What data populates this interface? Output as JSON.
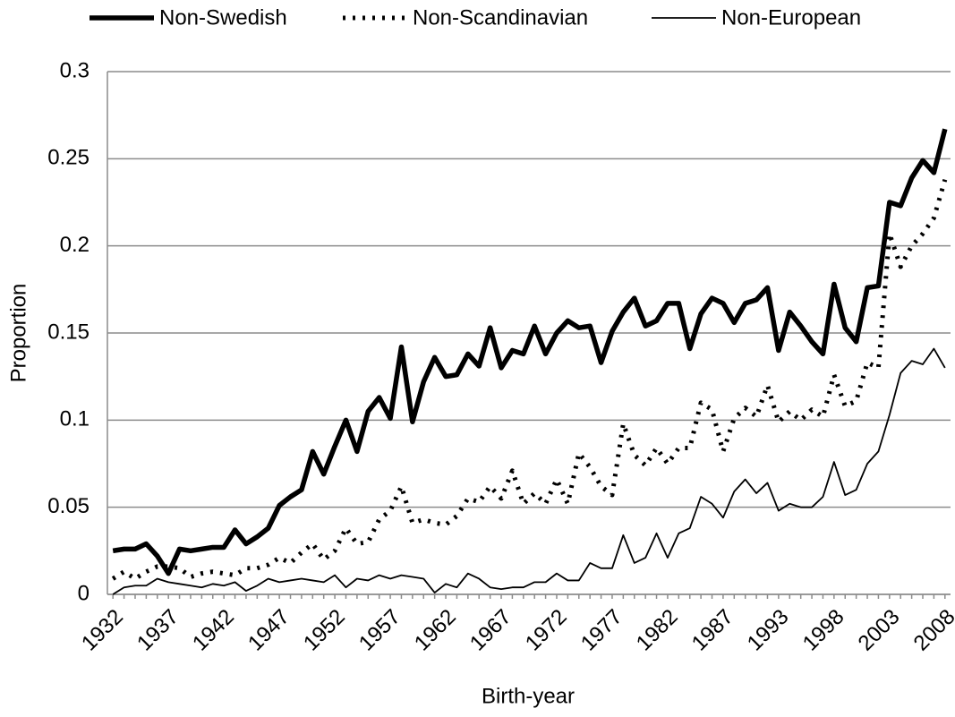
{
  "chart_data": {
    "type": "line",
    "x_label": "Birth-year",
    "y_label": "Proportion",
    "categories": [
      "1932",
      null,
      null,
      null,
      null,
      "1937",
      null,
      null,
      null,
      null,
      "1942",
      null,
      null,
      null,
      null,
      "1947",
      null,
      null,
      null,
      null,
      "1952",
      null,
      null,
      null,
      null,
      "1957",
      null,
      null,
      null,
      null,
      "1962",
      null,
      null,
      null,
      null,
      "1967",
      null,
      null,
      null,
      null,
      "1972",
      null,
      null,
      null,
      null,
      "1977",
      null,
      null,
      null,
      null,
      "1982",
      null,
      null,
      null,
      null,
      "1987",
      null,
      null,
      null,
      null,
      "1993",
      null,
      null,
      null,
      null,
      "1998",
      null,
      null,
      null,
      null,
      "2003",
      null,
      null,
      null,
      null,
      "2008"
    ],
    "ylim": [
      0,
      0.3
    ],
    "yticks": [
      0,
      0.05,
      0.1,
      0.15,
      0.2,
      0.25,
      0.3
    ],
    "grid": true,
    "legend": "top",
    "series": [
      {
        "name": "Non-Swedish",
        "color": "#000000",
        "line_style": "solid",
        "line_width": 5.5,
        "values": [
          0.025,
          0.026,
          0.026,
          0.029,
          0.022,
          0.012,
          0.026,
          0.025,
          0.026,
          0.027,
          0.027,
          0.037,
          0.029,
          0.033,
          0.038,
          0.051,
          0.056,
          0.06,
          0.082,
          0.069,
          0.085,
          0.1,
          0.082,
          0.105,
          0.113,
          0.101,
          0.142,
          0.099,
          0.122,
          0.136,
          0.125,
          0.126,
          0.138,
          0.131,
          0.153,
          0.13,
          0.14,
          0.138,
          0.154,
          0.138,
          0.15,
          0.157,
          0.153,
          0.154,
          0.133,
          0.151,
          0.162,
          0.17,
          0.154,
          0.157,
          0.167,
          0.167,
          0.141,
          0.161,
          0.17,
          0.167,
          0.156,
          0.167,
          0.169,
          0.176,
          0.14,
          0.162,
          0.154,
          0.145,
          0.138,
          0.178,
          0.153,
          0.145,
          0.176,
          0.177,
          0.225,
          0.223,
          0.239,
          0.249,
          0.242,
          0.267
        ]
      },
      {
        "name": "Non-Scandinavian",
        "color": "#000000",
        "line_style": "dotted",
        "line_width": 5,
        "values": [
          0.009,
          0.013,
          0.009,
          0.013,
          0.016,
          0.016,
          0.015,
          0.01,
          0.012,
          0.013,
          0.012,
          0.011,
          0.015,
          0.015,
          0.017,
          0.021,
          0.018,
          0.024,
          0.029,
          0.02,
          0.025,
          0.038,
          0.029,
          0.03,
          0.043,
          0.048,
          0.062,
          0.041,
          0.043,
          0.041,
          0.04,
          0.045,
          0.055,
          0.053,
          0.062,
          0.055,
          0.071,
          0.052,
          0.058,
          0.052,
          0.066,
          0.052,
          0.081,
          0.073,
          0.062,
          0.057,
          0.098,
          0.08,
          0.074,
          0.084,
          0.075,
          0.084,
          0.084,
          0.11,
          0.106,
          0.082,
          0.101,
          0.107,
          0.102,
          0.12,
          0.099,
          0.105,
          0.1,
          0.106,
          0.102,
          0.126,
          0.108,
          0.111,
          0.133,
          0.13,
          0.207,
          0.188,
          0.2,
          0.207,
          0.216,
          0.238
        ]
      },
      {
        "name": "Non-European",
        "color": "#000000",
        "line_style": "solid",
        "line_width": 1.8,
        "values": [
          0,
          0.004,
          0.005,
          0.005,
          0.009,
          0.007,
          0.006,
          0.005,
          0.004,
          0.006,
          0.005,
          0.007,
          0.002,
          0.005,
          0.009,
          0.007,
          0.008,
          0.009,
          0.008,
          0.007,
          0.011,
          0.004,
          0.009,
          0.008,
          0.011,
          0.009,
          0.011,
          0.01,
          0.009,
          0.001,
          0.006,
          0.004,
          0.012,
          0.009,
          0.004,
          0.003,
          0.004,
          0.004,
          0.007,
          0.007,
          0.012,
          0.008,
          0.008,
          0.018,
          0.015,
          0.015,
          0.034,
          0.018,
          0.021,
          0.035,
          0.021,
          0.035,
          0.038,
          0.056,
          0.052,
          0.044,
          0.059,
          0.066,
          0.058,
          0.064,
          0.048,
          0.052,
          0.05,
          0.05,
          0.056,
          0.076,
          0.057,
          0.06,
          0.075,
          0.082,
          0.103,
          0.127,
          0.134,
          0.132,
          0.141,
          0.13
        ]
      }
    ]
  }
}
